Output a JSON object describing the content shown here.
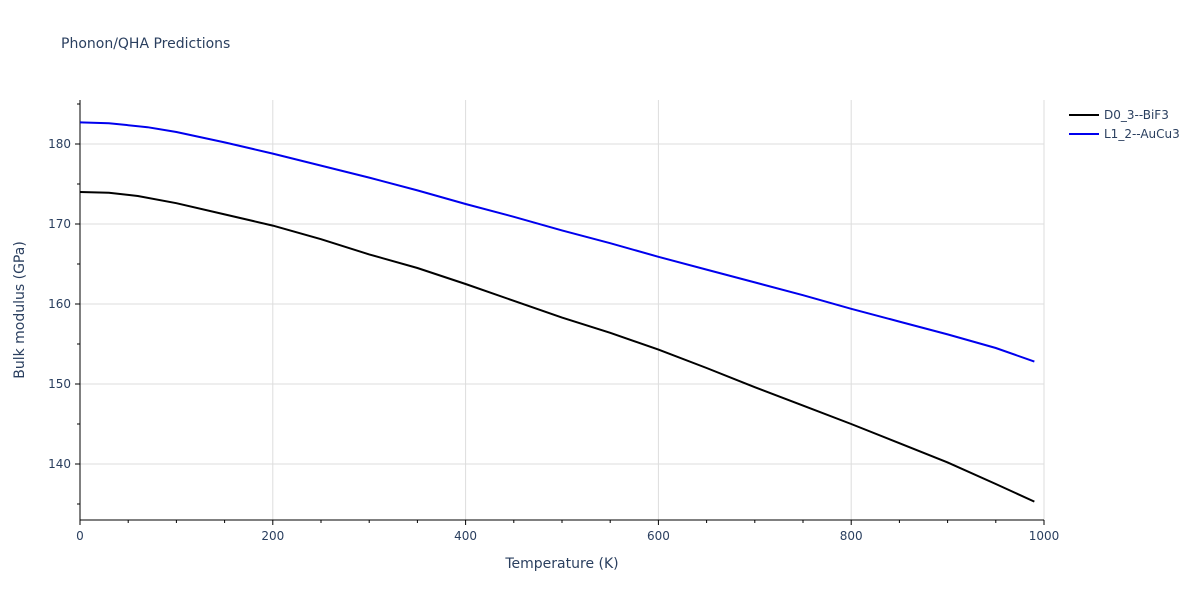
{
  "chart_data": {
    "type": "line",
    "title": "Phonon/QHA Predictions",
    "xlabel": "Temperature (K)",
    "ylabel": "Bulk modulus (GPa)",
    "xlim": [
      0,
      1000
    ],
    "ylim": [
      133,
      185.5
    ],
    "x_ticks": [
      0,
      200,
      400,
      600,
      800,
      1000
    ],
    "y_ticks": [
      140,
      150,
      160,
      170,
      180
    ],
    "grid": true,
    "legend_position": "top-right",
    "series": [
      {
        "name": "D0_3--BiF3",
        "color": "#000000",
        "x": [
          0,
          30,
          60,
          100,
          150,
          200,
          250,
          300,
          350,
          400,
          450,
          500,
          550,
          600,
          650,
          700,
          750,
          800,
          850,
          900,
          950,
          990
        ],
        "y": [
          174.0,
          173.9,
          173.5,
          172.6,
          171.2,
          169.8,
          168.1,
          166.2,
          164.5,
          162.5,
          160.4,
          158.3,
          156.4,
          154.3,
          152.0,
          149.6,
          147.3,
          145.0,
          142.6,
          140.2,
          137.5,
          135.3
        ]
      },
      {
        "name": "L1_2--AuCu3",
        "color": "#0000ee",
        "x": [
          0,
          30,
          70,
          100,
          150,
          200,
          250,
          300,
          350,
          400,
          450,
          500,
          550,
          600,
          650,
          700,
          750,
          800,
          850,
          900,
          950,
          990
        ],
        "y": [
          182.7,
          182.6,
          182.1,
          181.5,
          180.2,
          178.8,
          177.3,
          175.8,
          174.2,
          172.5,
          170.9,
          169.2,
          167.6,
          165.9,
          164.3,
          162.7,
          161.1,
          159.4,
          157.8,
          156.2,
          154.5,
          152.8
        ]
      }
    ]
  }
}
